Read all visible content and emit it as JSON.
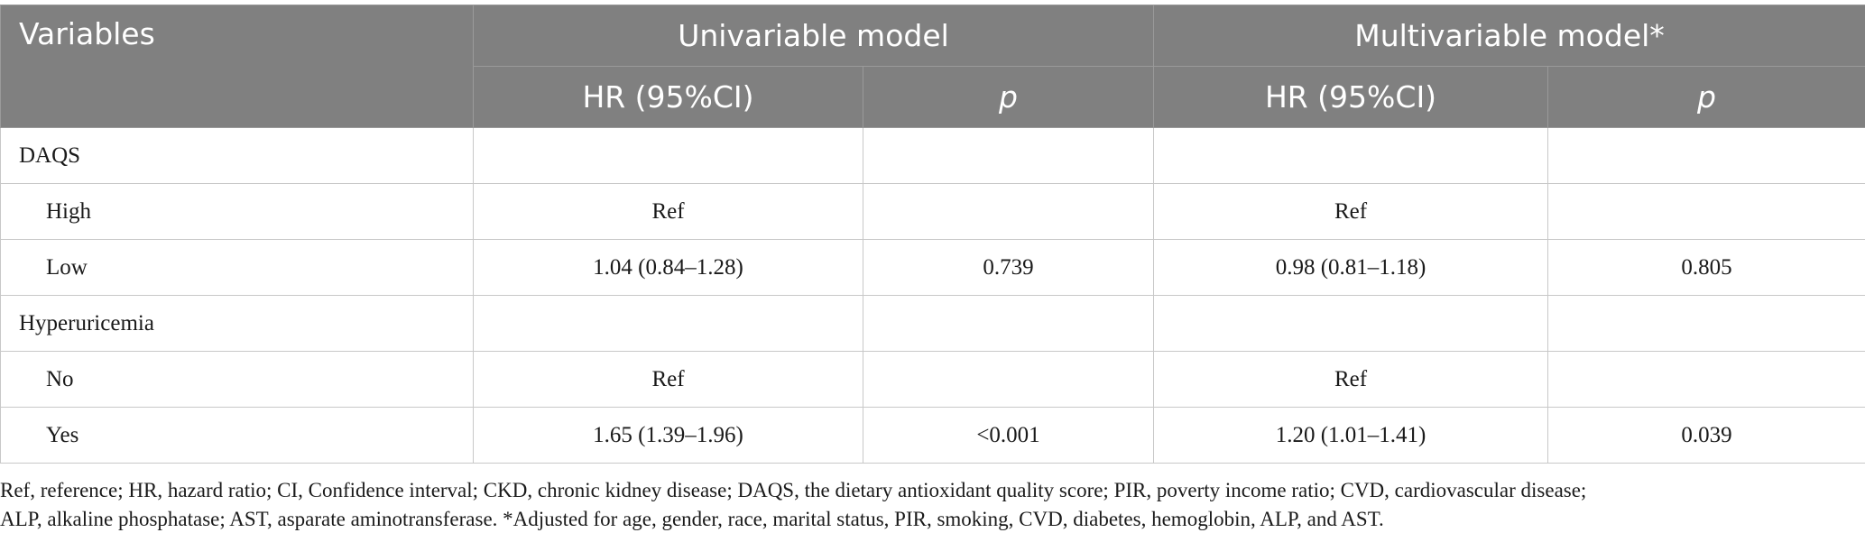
{
  "table": {
    "header": {
      "variables": "Variables",
      "univariable_model": "Univariable model",
      "multivariable_model": "Multivariable model*",
      "hr_ci": "HR (95%CI)",
      "p": "p"
    },
    "rows": [
      {
        "label": "DAQS",
        "indent": false,
        "uni_hr": "",
        "uni_p": "",
        "multi_hr": "",
        "multi_p": ""
      },
      {
        "label": "High",
        "indent": true,
        "uni_hr": "Ref",
        "uni_p": "",
        "multi_hr": "Ref",
        "multi_p": ""
      },
      {
        "label": "Low",
        "indent": true,
        "uni_hr": "1.04 (0.84–1.28)",
        "uni_p": "0.739",
        "multi_hr": "0.98 (0.81–1.18)",
        "multi_p": "0.805"
      },
      {
        "label": "Hyperuricemia",
        "indent": false,
        "uni_hr": "",
        "uni_p": "",
        "multi_hr": "",
        "multi_p": ""
      },
      {
        "label": "No",
        "indent": true,
        "uni_hr": "Ref",
        "uni_p": "",
        "multi_hr": "Ref",
        "multi_p": ""
      },
      {
        "label": "Yes",
        "indent": true,
        "uni_hr": "1.65 (1.39–1.96)",
        "uni_p": "<0.001",
        "multi_hr": "1.20 (1.01–1.41)",
        "multi_p": "0.039"
      }
    ]
  },
  "footnote": {
    "line1": "Ref, reference; HR, hazard ratio; CI, Confidence interval; CKD, chronic kidney disease; DAQS, the dietary antioxidant quality score; PIR, poverty income ratio; CVD, cardiovascular disease;",
    "line2": "ALP, alkaline phosphatase; AST, asparate aminotransferase. *Adjusted for age, gender, race, marital status, PIR, smoking, CVD, diabetes, hemoglobin, ALP, and AST."
  }
}
